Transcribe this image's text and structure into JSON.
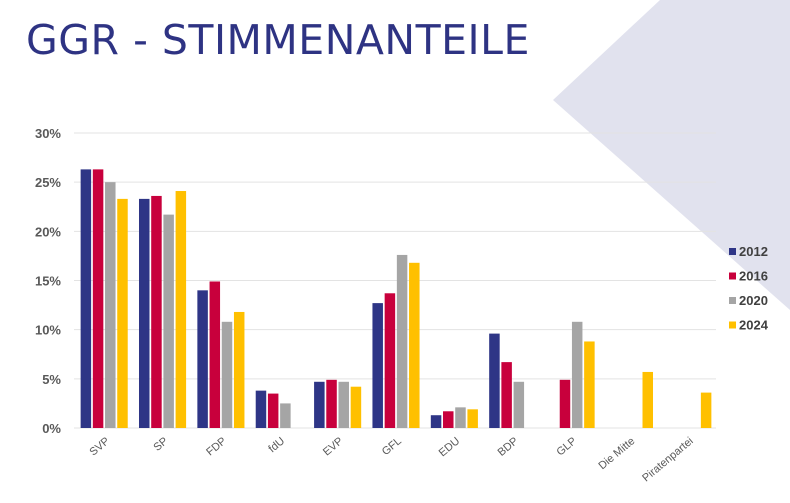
{
  "title": "GGR - STIMMENANTEILE",
  "colors": {
    "title": "#2e3383",
    "background_shape": "#e1e2ee",
    "gridline": "#e3e3e3"
  },
  "chart_data": {
    "type": "bar",
    "title": "GGR - STIMMENANTEILE",
    "xlabel": "",
    "ylabel": "",
    "ylim": [
      0,
      30
    ],
    "yticks": [
      0,
      5,
      10,
      15,
      20,
      25,
      30
    ],
    "ytick_labels": [
      "0%",
      "5%",
      "10%",
      "15%",
      "20%",
      "25%",
      "30%"
    ],
    "grid": true,
    "legend_position": "right",
    "categories": [
      "SVP",
      "SP",
      "FDP",
      "fdU",
      "EVP",
      "GFL",
      "EDU",
      "BDP",
      "GLP",
      "Die Mitte",
      "Piratenpartei"
    ],
    "series": [
      {
        "name": "2012",
        "color": "#2e3586",
        "values": [
          26.3,
          23.3,
          14.0,
          3.8,
          4.7,
          12.7,
          1.3,
          9.6,
          null,
          null,
          null
        ]
      },
      {
        "name": "2016",
        "color": "#c8003c",
        "values": [
          26.3,
          23.6,
          14.9,
          3.5,
          4.9,
          13.7,
          1.7,
          6.7,
          4.9,
          null,
          null
        ]
      },
      {
        "name": "2020",
        "color": "#a5a5a5",
        "values": [
          25.0,
          21.7,
          10.8,
          2.5,
          4.7,
          17.6,
          2.1,
          4.7,
          10.8,
          null,
          null
        ]
      },
      {
        "name": "2024",
        "color": "#ffc000",
        "values": [
          23.3,
          24.1,
          11.8,
          null,
          4.2,
          16.8,
          1.9,
          null,
          8.8,
          5.7,
          3.6
        ]
      }
    ]
  }
}
